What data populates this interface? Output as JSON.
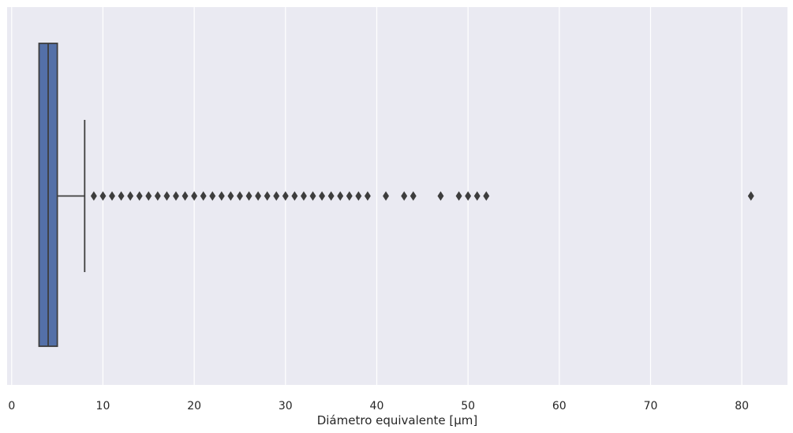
{
  "chart_data": {
    "type": "boxplot",
    "orientation": "horizontal",
    "xlabel": "Diámetro equivalente [µm]",
    "ylabel": "",
    "xlim": [
      -0.5,
      85
    ],
    "xticks": [
      0,
      10,
      20,
      30,
      40,
      50,
      60,
      70,
      80
    ],
    "grid": "on (vertical, white)",
    "box": {
      "q1": 3,
      "median": 4,
      "q3": 5,
      "whisker_low": 3,
      "whisker_high": 8,
      "color": "#5470a8"
    },
    "outliers": [
      9,
      10,
      11,
      12,
      13,
      14,
      15,
      16,
      17,
      18,
      19,
      20,
      21,
      22,
      23,
      24,
      25,
      26,
      27,
      28,
      29,
      30,
      31,
      32,
      33,
      34,
      35,
      36,
      37,
      38,
      39,
      41,
      43,
      44,
      47,
      49,
      50,
      51,
      52,
      81
    ],
    "colors": {
      "background": "#eaeaf2",
      "grid": "#ffffff",
      "box_fill": "#5470a8",
      "line": "#3d3d3d",
      "text": "#262626"
    }
  }
}
